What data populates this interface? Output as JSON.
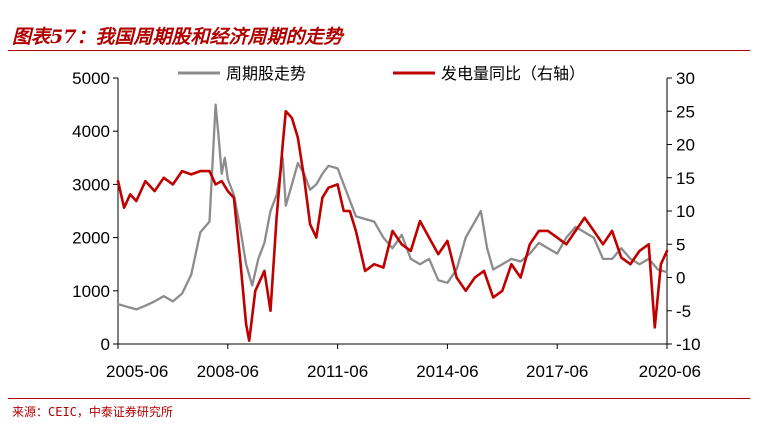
{
  "title": "图表57：我国周期股和经济周期的走势",
  "source": "来源：CEIC，中泰证券研究所",
  "colors": {
    "title": "#b00000",
    "cycle_stocks": "#8c8c8c",
    "power_yoy": "#c00000"
  },
  "chart_data": {
    "type": "line",
    "x_ticks": [
      "2005-06",
      "2008-06",
      "2011-06",
      "2014-06",
      "2017-06",
      "2020-06"
    ],
    "xlim": [
      "2005-06",
      "2020-06"
    ],
    "y_left": {
      "ticks": [
        "5000",
        "4000",
        "3000",
        "2000",
        "1000",
        "0"
      ],
      "lim": [
        0,
        5000
      ]
    },
    "y_right": {
      "ticks": [
        "30",
        "25",
        "20",
        "15",
        "10",
        "5",
        "0",
        "-5",
        "-10"
      ],
      "lim": [
        -10,
        30
      ]
    },
    "legend_position": "top",
    "series": [
      {
        "name": "周期股走势",
        "axis": "left",
        "color": "#8c8c8c",
        "points": [
          [
            "2005-06",
            750
          ],
          [
            "2005-09",
            700
          ],
          [
            "2005-12",
            650
          ],
          [
            "2006-03",
            720
          ],
          [
            "2006-06",
            800
          ],
          [
            "2006-09",
            900
          ],
          [
            "2006-12",
            800
          ],
          [
            "2007-03",
            950
          ],
          [
            "2007-06",
            1300
          ],
          [
            "2007-09",
            2100
          ],
          [
            "2007-12",
            2300
          ],
          [
            "2008-02",
            4500
          ],
          [
            "2008-03",
            3900
          ],
          [
            "2008-04",
            3200
          ],
          [
            "2008-05",
            3500
          ],
          [
            "2008-06",
            3100
          ],
          [
            "2008-08",
            2800
          ],
          [
            "2008-10",
            2200
          ],
          [
            "2008-12",
            1500
          ],
          [
            "2009-02",
            1100
          ],
          [
            "2009-04",
            1600
          ],
          [
            "2009-06",
            1900
          ],
          [
            "2009-08",
            2500
          ],
          [
            "2009-10",
            2800
          ],
          [
            "2009-12",
            3500
          ],
          [
            "2010-01",
            2600
          ],
          [
            "2010-03",
            3000
          ],
          [
            "2010-05",
            3400
          ],
          [
            "2010-07",
            3200
          ],
          [
            "2010-09",
            2900
          ],
          [
            "2010-11",
            3000
          ],
          [
            "2011-01",
            3200
          ],
          [
            "2011-03",
            3350
          ],
          [
            "2011-06",
            3300
          ],
          [
            "2011-08",
            3000
          ],
          [
            "2011-10",
            2700
          ],
          [
            "2011-12",
            2400
          ],
          [
            "2012-03",
            2350
          ],
          [
            "2012-06",
            2300
          ],
          [
            "2012-09",
            2000
          ],
          [
            "2012-12",
            1800
          ],
          [
            "2013-03",
            2050
          ],
          [
            "2013-06",
            1600
          ],
          [
            "2013-09",
            1500
          ],
          [
            "2013-12",
            1600
          ],
          [
            "2014-03",
            1200
          ],
          [
            "2014-06",
            1150
          ],
          [
            "2014-09",
            1400
          ],
          [
            "2014-12",
            2000
          ],
          [
            "2015-03",
            2300
          ],
          [
            "2015-05",
            2500
          ],
          [
            "2015-07",
            1800
          ],
          [
            "2015-09",
            1400
          ],
          [
            "2015-12",
            1500
          ],
          [
            "2016-03",
            1600
          ],
          [
            "2016-06",
            1550
          ],
          [
            "2016-09",
            1700
          ],
          [
            "2016-12",
            1900
          ],
          [
            "2017-03",
            1800
          ],
          [
            "2017-06",
            1700
          ],
          [
            "2017-09",
            2000
          ],
          [
            "2017-12",
            2200
          ],
          [
            "2018-03",
            2100
          ],
          [
            "2018-06",
            2000
          ],
          [
            "2018-09",
            1600
          ],
          [
            "2018-12",
            1600
          ],
          [
            "2019-03",
            1800
          ],
          [
            "2019-06",
            1600
          ],
          [
            "2019-09",
            1500
          ],
          [
            "2019-12",
            1600
          ],
          [
            "2020-03",
            1400
          ],
          [
            "2020-06",
            1350
          ]
        ]
      },
      {
        "name": "发电量同比（右轴）",
        "axis": "right",
        "color": "#c00000",
        "points": [
          [
            "2005-06",
            14.5
          ],
          [
            "2005-08",
            10.5
          ],
          [
            "2005-10",
            12.5
          ],
          [
            "2005-12",
            11.5
          ],
          [
            "2006-03",
            14.5
          ],
          [
            "2006-06",
            13
          ],
          [
            "2006-09",
            15
          ],
          [
            "2006-12",
            14
          ],
          [
            "2007-03",
            16
          ],
          [
            "2007-06",
            15.5
          ],
          [
            "2007-09",
            16
          ],
          [
            "2007-12",
            16
          ],
          [
            "2008-02",
            14
          ],
          [
            "2008-04",
            14.5
          ],
          [
            "2008-06",
            13
          ],
          [
            "2008-08",
            12
          ],
          [
            "2008-10",
            3
          ],
          [
            "2008-12",
            -7
          ],
          [
            "2009-01",
            -9.5
          ],
          [
            "2009-03",
            -2
          ],
          [
            "2009-06",
            1
          ],
          [
            "2009-08",
            -5
          ],
          [
            "2009-10",
            9
          ],
          [
            "2009-12",
            20
          ],
          [
            "2010-01",
            25
          ],
          [
            "2010-03",
            24
          ],
          [
            "2010-05",
            21
          ],
          [
            "2010-07",
            15
          ],
          [
            "2010-09",
            8
          ],
          [
            "2010-11",
            6
          ],
          [
            "2011-01",
            12
          ],
          [
            "2011-03",
            13.5
          ],
          [
            "2011-06",
            14
          ],
          [
            "2011-08",
            10
          ],
          [
            "2011-10",
            10
          ],
          [
            "2011-12",
            7
          ],
          [
            "2012-03",
            1
          ],
          [
            "2012-06",
            2
          ],
          [
            "2012-09",
            1.5
          ],
          [
            "2012-12",
            7
          ],
          [
            "2013-03",
            5
          ],
          [
            "2013-06",
            4
          ],
          [
            "2013-09",
            8.5
          ],
          [
            "2013-12",
            6
          ],
          [
            "2014-03",
            3.5
          ],
          [
            "2014-06",
            5.5
          ],
          [
            "2014-09",
            0
          ],
          [
            "2014-12",
            -2
          ],
          [
            "2015-03",
            0
          ],
          [
            "2015-06",
            1
          ],
          [
            "2015-09",
            -3
          ],
          [
            "2015-12",
            -2
          ],
          [
            "2016-03",
            2
          ],
          [
            "2016-06",
            0
          ],
          [
            "2016-09",
            5
          ],
          [
            "2016-12",
            7
          ],
          [
            "2017-03",
            7
          ],
          [
            "2017-06",
            6
          ],
          [
            "2017-09",
            5
          ],
          [
            "2017-12",
            7
          ],
          [
            "2018-03",
            9
          ],
          [
            "2018-06",
            7
          ],
          [
            "2018-09",
            5
          ],
          [
            "2018-12",
            7
          ],
          [
            "2019-03",
            3
          ],
          [
            "2019-06",
            2
          ],
          [
            "2019-09",
            4
          ],
          [
            "2019-12",
            5
          ],
          [
            "2020-02",
            -7.5
          ],
          [
            "2020-04",
            2
          ],
          [
            "2020-06",
            4
          ]
        ]
      }
    ]
  }
}
